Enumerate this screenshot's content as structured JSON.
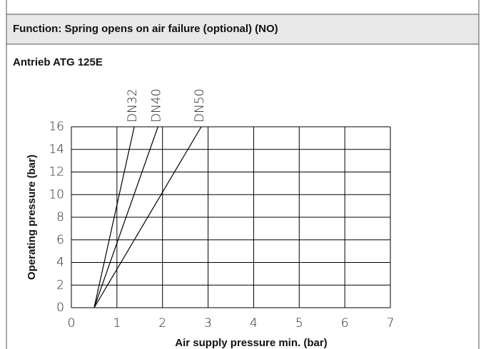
{
  "header": {
    "title": "Function: Spring opens on air failure (optional) (NO)"
  },
  "chart_data": {
    "type": "line",
    "title": "Antrieb ATG 125E",
    "xlabel": "Air supply pressure min. (bar)",
    "ylabel": "Operating pressure (bar)",
    "series": [
      {
        "name": "DN32",
        "color": "#000000",
        "x": [
          0.5,
          1.38
        ],
        "values": [
          0,
          16
        ]
      },
      {
        "name": "DN40",
        "color": "#000000",
        "x": [
          0.5,
          1.9
        ],
        "values": [
          0,
          16
        ]
      },
      {
        "name": "DN50",
        "color": "#000000",
        "x": [
          0.5,
          2.85
        ],
        "values": [
          0,
          16
        ]
      }
    ],
    "xlim": [
      0,
      7
    ],
    "xticks": [
      0,
      1,
      2,
      3,
      4,
      5,
      6,
      7
    ],
    "ylim": [
      0,
      16
    ],
    "yticks": [
      0,
      2,
      4,
      6,
      8,
      10,
      12,
      14,
      16
    ],
    "grid": true
  }
}
